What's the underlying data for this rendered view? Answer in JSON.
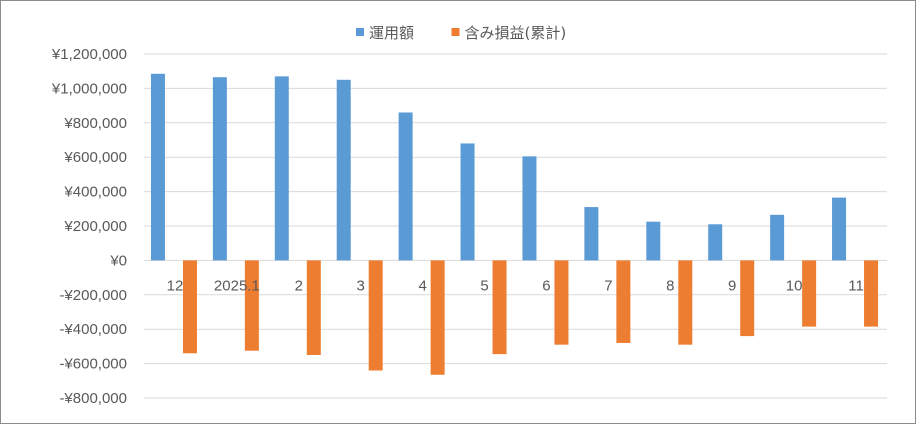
{
  "chart_data": {
    "type": "bar",
    "categories": [
      "12",
      "2025.1",
      "2",
      "3",
      "4",
      "5",
      "6",
      "7",
      "8",
      "9",
      "10",
      "11"
    ],
    "series": [
      {
        "name": "運用額",
        "color": "#5b9bd5",
        "values": [
          1085000,
          1065000,
          1070000,
          1050000,
          860000,
          680000,
          605000,
          310000,
          225000,
          210000,
          265000,
          365000
        ]
      },
      {
        "name": "含み損益(累計)",
        "color": "#ed7d31",
        "values": [
          -540000,
          -525000,
          -550000,
          -640000,
          -665000,
          -545000,
          -490000,
          -480000,
          -490000,
          -440000,
          -385000,
          -385000
        ]
      }
    ],
    "ylim": [
      -800000,
      1200000
    ],
    "yticks": [
      1200000,
      1000000,
      800000,
      600000,
      400000,
      200000,
      0,
      -200000,
      -400000,
      -600000,
      -800000
    ],
    "ytick_labels": [
      "¥1,200,000",
      "¥1,000,000",
      "¥800,000",
      "¥600,000",
      "¥400,000",
      "¥200,000",
      "¥0",
      "-¥200,000",
      "-¥400,000",
      "-¥600,000",
      "-¥800,000"
    ],
    "negative_label_color": "#ff0000",
    "positive_label_color": "#595959",
    "grid": true,
    "legend_position": "top"
  }
}
